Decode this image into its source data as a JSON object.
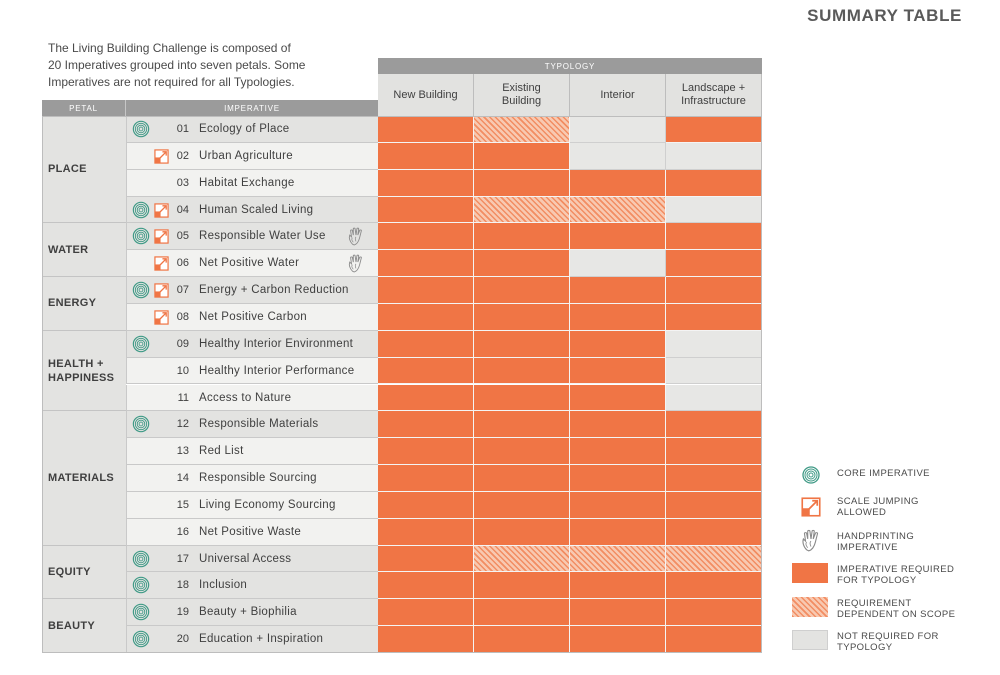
{
  "page_title": "SUMMARY TABLE",
  "intro_lines": [
    "The Living Building Challenge is composed of",
    "20 Imperatives grouped into seven petals. Some",
    "Imperatives are not required for all Typologies."
  ],
  "headers": {
    "typology": "TYPOLOGY",
    "petal": "PETAL",
    "imperative": "IMPERATIVE"
  },
  "typologies": [
    {
      "line1": "New Building",
      "line2": ""
    },
    {
      "line1": "Existing",
      "line2": "Building"
    },
    {
      "line1": "Interior",
      "line2": ""
    },
    {
      "line1": "Landscape +",
      "line2": "Infrastructure"
    }
  ],
  "petals": [
    {
      "line1": "PLACE",
      "line2": ""
    },
    {
      "line1": "WATER",
      "line2": ""
    },
    {
      "line1": "ENERGY",
      "line2": ""
    },
    {
      "line1": "HEALTH +",
      "line2": "HAPPINESS"
    },
    {
      "line1": "MATERIALS",
      "line2": ""
    },
    {
      "line1": "EQUITY",
      "line2": ""
    },
    {
      "line1": "BEAUTY",
      "line2": ""
    }
  ],
  "imperatives": [
    {
      "num": "01",
      "name": "Ecology of Place",
      "core": true,
      "scale": false,
      "hand": false,
      "status": [
        "req",
        "dep",
        "notreq",
        "req"
      ]
    },
    {
      "num": "02",
      "name": "Urban Agriculture",
      "core": false,
      "scale": true,
      "hand": false,
      "status": [
        "req",
        "req",
        "notreq",
        "notreq"
      ]
    },
    {
      "num": "03",
      "name": "Habitat Exchange",
      "core": false,
      "scale": false,
      "hand": false,
      "status": [
        "req",
        "req",
        "req",
        "req"
      ]
    },
    {
      "num": "04",
      "name": "Human Scaled Living",
      "core": true,
      "scale": true,
      "hand": false,
      "status": [
        "req",
        "dep",
        "dep",
        "notreq"
      ]
    },
    {
      "num": "05",
      "name": "Responsible Water Use",
      "core": true,
      "scale": true,
      "hand": true,
      "status": [
        "req",
        "req",
        "req",
        "req"
      ]
    },
    {
      "num": "06",
      "name": "Net Positive Water",
      "core": false,
      "scale": true,
      "hand": true,
      "status": [
        "req",
        "req",
        "notreq",
        "req"
      ]
    },
    {
      "num": "07",
      "name": "Energy + Carbon Reduction",
      "core": true,
      "scale": true,
      "hand": false,
      "status": [
        "req",
        "req",
        "req",
        "req"
      ]
    },
    {
      "num": "08",
      "name": "Net Positive Carbon",
      "core": false,
      "scale": true,
      "hand": false,
      "status": [
        "req",
        "req",
        "req",
        "req"
      ]
    },
    {
      "num": "09",
      "name": "Healthy Interior Environment",
      "core": true,
      "scale": false,
      "hand": false,
      "status": [
        "req",
        "req",
        "req",
        "notreq"
      ]
    },
    {
      "num": "10",
      "name": "Healthy Interior Performance",
      "core": false,
      "scale": false,
      "hand": false,
      "status": [
        "req",
        "req",
        "req",
        "notreq"
      ]
    },
    {
      "num": "11",
      "name": "Access to Nature",
      "core": false,
      "scale": false,
      "hand": false,
      "status": [
        "req",
        "req",
        "req",
        "notreq"
      ]
    },
    {
      "num": "12",
      "name": "Responsible Materials",
      "core": true,
      "scale": false,
      "hand": false,
      "status": [
        "req",
        "req",
        "req",
        "req"
      ]
    },
    {
      "num": "13",
      "name": "Red List",
      "core": false,
      "scale": false,
      "hand": false,
      "status": [
        "req",
        "req",
        "req",
        "req"
      ]
    },
    {
      "num": "14",
      "name": "Responsible Sourcing",
      "core": false,
      "scale": false,
      "hand": false,
      "status": [
        "req",
        "req",
        "req",
        "req"
      ]
    },
    {
      "num": "15",
      "name": "Living Economy Sourcing",
      "core": false,
      "scale": false,
      "hand": false,
      "status": [
        "req",
        "req",
        "req",
        "req"
      ]
    },
    {
      "num": "16",
      "name": "Net Positive Waste",
      "core": false,
      "scale": false,
      "hand": false,
      "status": [
        "req",
        "req",
        "req",
        "req"
      ]
    },
    {
      "num": "17",
      "name": "Universal Access",
      "core": true,
      "scale": false,
      "hand": false,
      "status": [
        "req",
        "dep",
        "dep",
        "dep"
      ]
    },
    {
      "num": "18",
      "name": "Inclusion",
      "core": true,
      "scale": false,
      "hand": false,
      "status": [
        "req",
        "req",
        "req",
        "req"
      ]
    },
    {
      "num": "19",
      "name": "Beauty + Biophilia",
      "core": true,
      "scale": false,
      "hand": false,
      "status": [
        "req",
        "req",
        "req",
        "req"
      ]
    },
    {
      "num": "20",
      "name": "Education + Inspiration",
      "core": true,
      "scale": false,
      "hand": false,
      "status": [
        "req",
        "req",
        "req",
        "req"
      ]
    }
  ],
  "legend": {
    "core": {
      "line1": "CORE IMPERATIVE",
      "line2": ""
    },
    "scale": {
      "line1": "SCALE JUMPING",
      "line2": "ALLOWED"
    },
    "hand": {
      "line1": "HANDPRINTING",
      "line2": "IMPERATIVE"
    },
    "req": {
      "line1": "IMPERATIVE REQUIRED",
      "line2": "FOR TYPOLOGY"
    },
    "dep": {
      "line1": "REQUIREMENT",
      "line2": "DEPENDENT ON SCOPE"
    },
    "notreq": {
      "line1": "NOT REQUIRED FOR",
      "line2": "TYPOLOGY"
    }
  },
  "colors": {
    "required": "#f07545",
    "dependent": "#f5b99c",
    "not_required": "#e7e7e5",
    "core_icon": "#3f9a86",
    "scale_icon": "#f07545"
  }
}
